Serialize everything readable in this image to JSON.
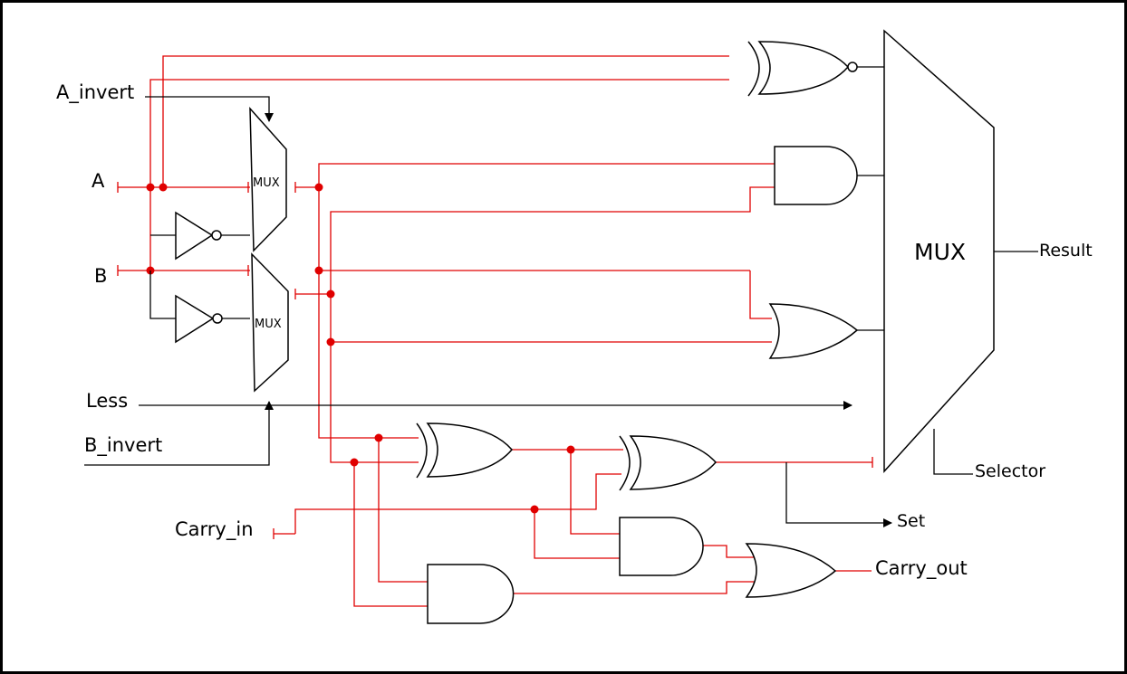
{
  "colors": {
    "wire": "#e00000",
    "black_wire": "#000000",
    "junction": "#e00000"
  },
  "inputs": {
    "a_invert": "A_invert",
    "a": "A",
    "b": "B",
    "less": "Less",
    "b_invert": "B_invert",
    "carry_in": "Carry_in"
  },
  "components": {
    "mux_a": "MUX",
    "mux_b": "MUX",
    "mux_main": "MUX"
  },
  "outputs": {
    "result": "Result",
    "selector": "Selector",
    "set": "Set",
    "carry_out": "Carry_out"
  }
}
